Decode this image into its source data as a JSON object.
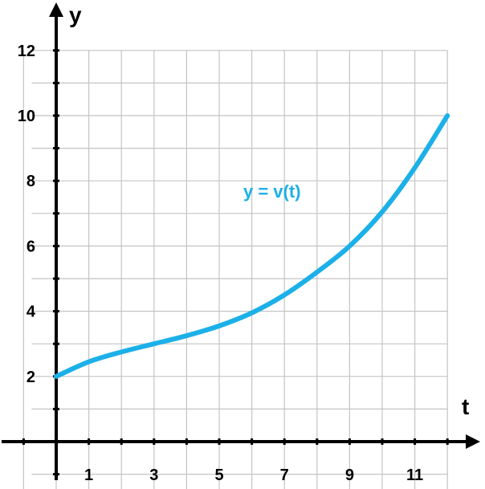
{
  "chart_data": {
    "type": "line",
    "xlabel": "t",
    "ylabel": "y",
    "xlim": [
      -1,
      12
    ],
    "ylim": [
      -1,
      12
    ],
    "grid": true,
    "x_ticks": [
      "1",
      "3",
      "5",
      "7",
      "9",
      "11"
    ],
    "y_ticks": [
      "2",
      "4",
      "6",
      "8",
      "10",
      "12"
    ],
    "series": [
      {
        "name": "y = v(t)",
        "color": "#1cb0e8",
        "x": [
          0,
          1,
          2,
          3,
          4,
          5,
          6,
          7,
          8,
          9,
          10,
          11,
          12
        ],
        "y": [
          2.0,
          2.45,
          2.75,
          3.0,
          3.25,
          3.55,
          3.95,
          4.5,
          5.2,
          6.0,
          7.05,
          8.4,
          10.0
        ]
      }
    ]
  }
}
